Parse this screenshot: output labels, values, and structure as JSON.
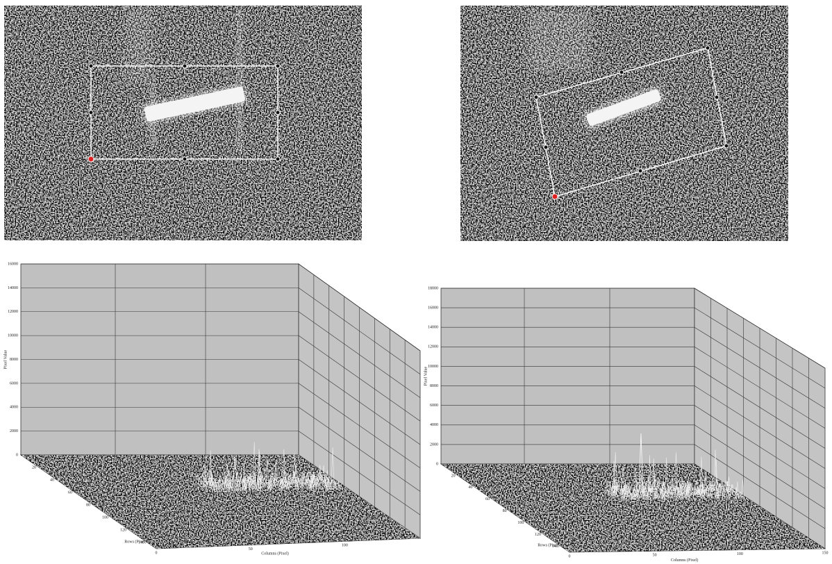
{
  "plots": [
    {
      "y_label": "Pixel Value",
      "depth_label": "Rows (Pixel)",
      "x_label": "Columns (Pixel)",
      "z_ticks": [
        16000,
        14000,
        12000,
        10000,
        8000,
        6000,
        4000,
        2000,
        0
      ],
      "row_ticks": [
        20,
        40,
        60,
        80,
        100,
        120,
        140
      ],
      "col_ticks": [
        0,
        50,
        100
      ]
    },
    {
      "y_label": "Pixel Value",
      "depth_label": "Rows (Pixel)",
      "x_label": "Columns (Pixel)",
      "z_ticks": [
        18000,
        16000,
        14000,
        12000,
        10000,
        8000,
        6000,
        4000,
        2000,
        0
      ],
      "row_ticks": [
        20,
        40,
        60,
        80,
        100,
        120,
        140
      ],
      "col_ticks": [
        0,
        50,
        100,
        150
      ]
    }
  ]
}
